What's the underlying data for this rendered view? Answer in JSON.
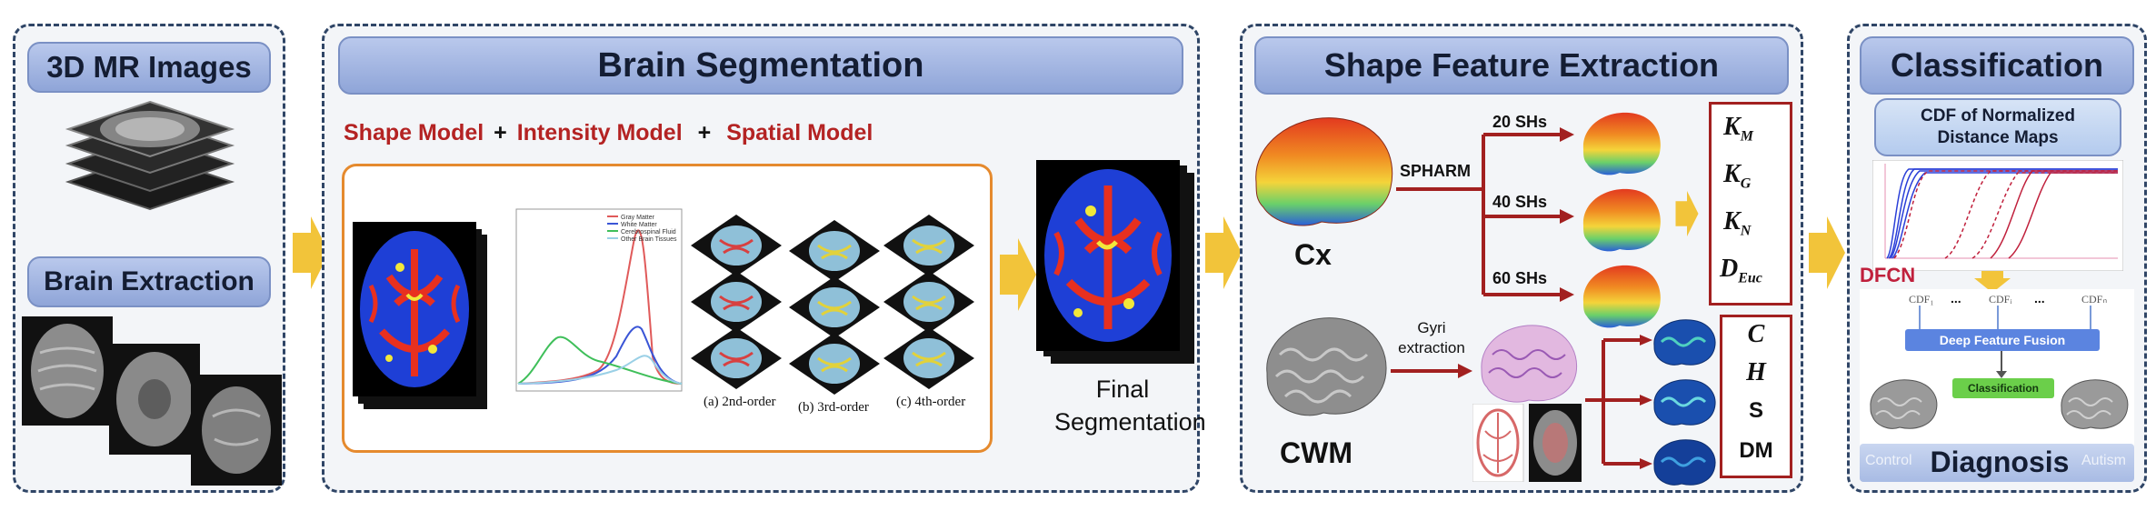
{
  "panels": {
    "mr": {
      "title": "3D MR Images",
      "sub_title": "Brain Extraction"
    },
    "seg": {
      "title": "Brain Segmentation",
      "model_line": [
        "Shape Model",
        "+",
        "Intensity Model",
        "+",
        "Spatial Model"
      ],
      "legend": [
        "Gray Matter",
        "White Matter",
        "Cerebrospinal Fluid",
        "Other Brain Tissues"
      ],
      "order_labels": [
        "(a) 2nd-order",
        "(b) 3rd-order",
        "(c) 4th-order"
      ],
      "final_line1": "Final",
      "final_line2": "Segmentation"
    },
    "shape": {
      "title": "Shape Feature Extraction",
      "cx": "Cx",
      "cwm": "CWM",
      "spharm": "SPHARM",
      "shs": [
        "20 SHs",
        "40 SHs",
        "60 SHs"
      ],
      "gyri_line1": "Gyri",
      "gyri_line2": "extraction",
      "features_top": [
        "K",
        "K",
        "K",
        "D"
      ],
      "features_top_sub": [
        "M",
        "G",
        "N",
        "Euc"
      ],
      "features_bottom": [
        "C",
        "H",
        "S",
        "DM"
      ]
    },
    "cls": {
      "title": "Classification",
      "cdf_line1": "CDF of Normalized",
      "cdf_line2": "Distance Maps",
      "dfcn": "DFCN",
      "cdf_nodes": [
        "CDF₁",
        "CDFᵢ",
        "CDFₙ"
      ],
      "dots": "...",
      "fusion": "Deep Feature Fusion",
      "classification": "Classification",
      "control": "Control",
      "diagnosis": "Diagnosis",
      "autism": "Autism"
    }
  },
  "colors": {
    "header_fill": "#9fb3e0",
    "panel_border": "#2f4566",
    "arrow_fill": "#f2c43a",
    "model_text": "#b42323",
    "highlight_box": "#e58a2e"
  }
}
